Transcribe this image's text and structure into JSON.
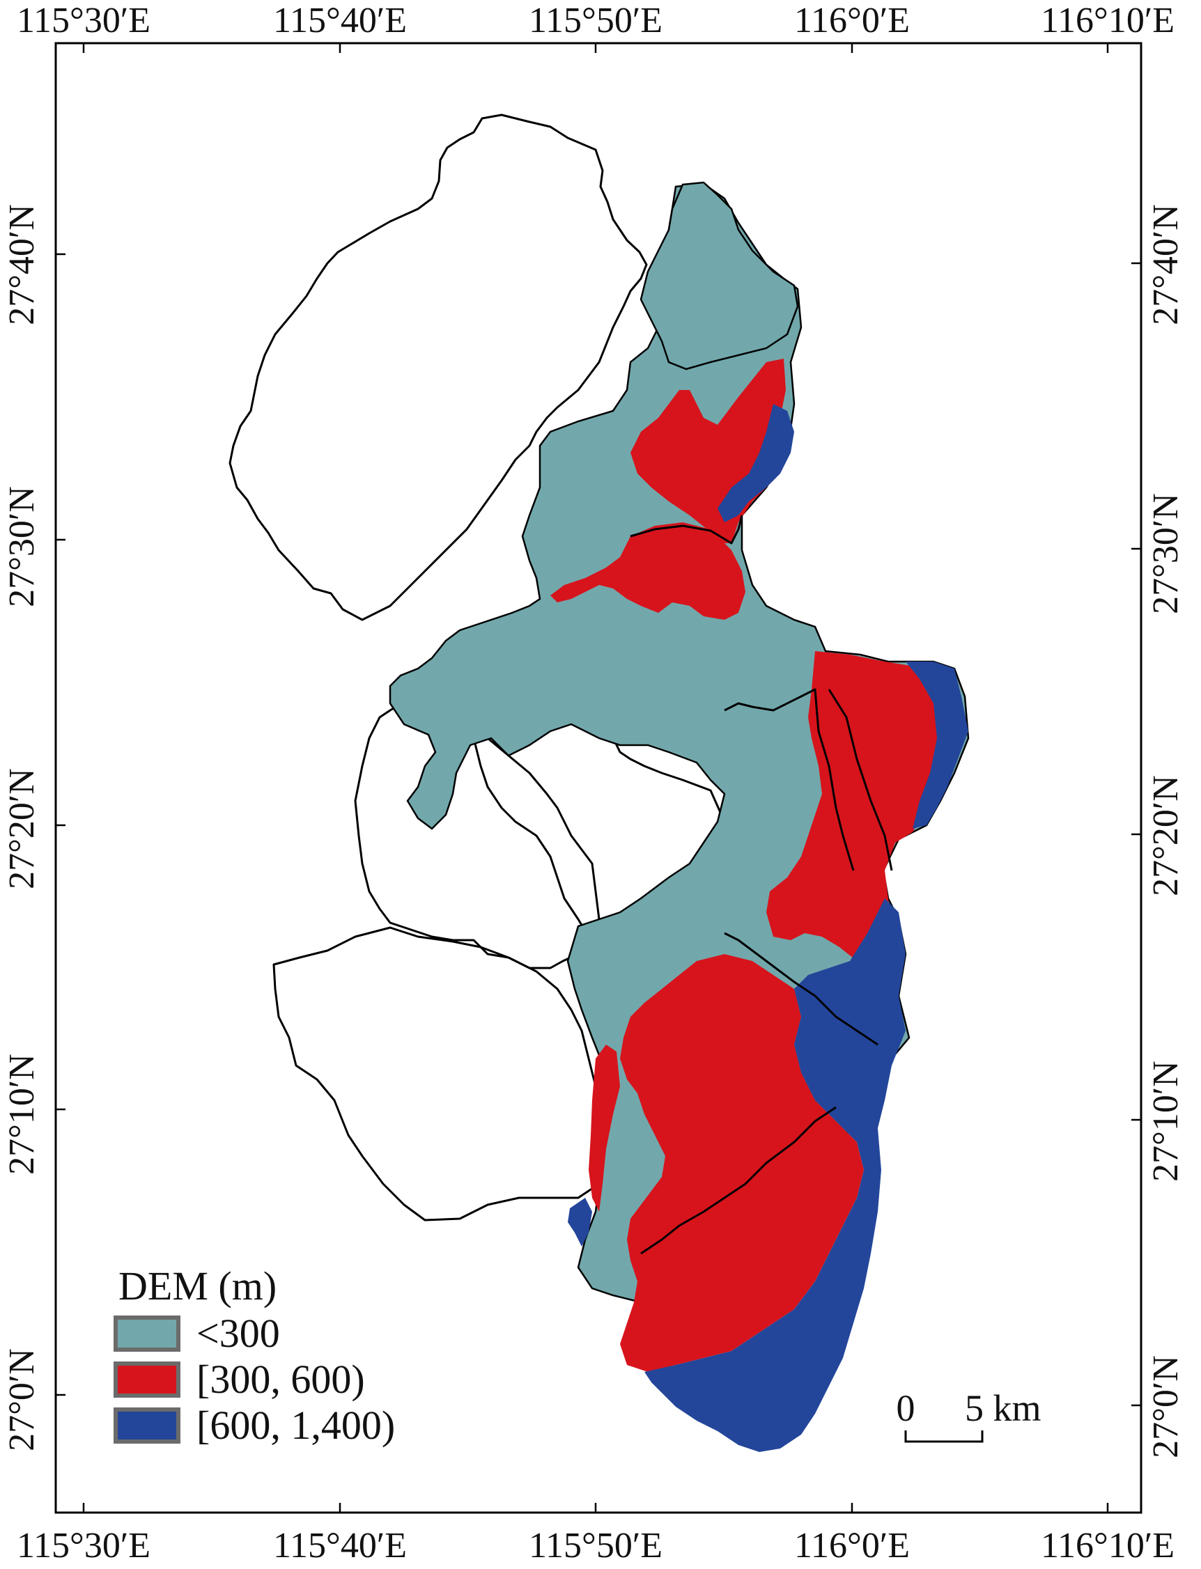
{
  "map": {
    "top_lon_labels": [
      "115°30′E",
      "115°40′E",
      "115°50′E",
      "116°0′E",
      "116°10′E"
    ],
    "bottom_lon_labels": [
      "115°30′E",
      "115°40′E",
      "115°50′E",
      "116°0′E",
      "116°10′E"
    ],
    "left_lat_labels": [
      "27°40′N",
      "27°30′N",
      "27°20′N",
      "27°10′N",
      "27°0′N"
    ],
    "right_lat_labels": [
      "27°40′N",
      "27°30′N",
      "27°20′N",
      "27°10′N",
      "27°0′N"
    ]
  },
  "legend": {
    "title": "DEM (m)",
    "items": [
      {
        "label": "<300",
        "color": "#72a8ac"
      },
      {
        "label": "[300, 600)",
        "color": "#d7141c"
      },
      {
        "label": "[600, 1,400)",
        "color": "#23469a"
      }
    ]
  },
  "scale_bar": {
    "start_label": "0",
    "end_label": "5 km"
  },
  "colors": {
    "low": "#72a8ac",
    "mid": "#d7141c",
    "high": "#23469a",
    "boundary": "#000000"
  }
}
